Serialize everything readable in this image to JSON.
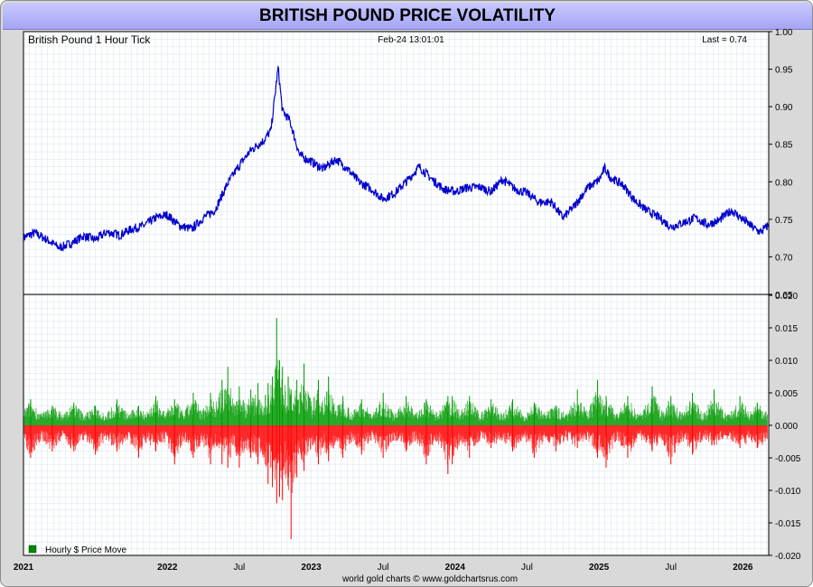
{
  "page": {
    "title": "BRITISH POUND PRICE VOLATILITY",
    "footer": "world gold charts © www.goldchartsrus.com"
  },
  "colors": {
    "price_line": "#0000cc",
    "positive_bar": "#009900",
    "negative_bar": "#ff0000",
    "title_bar": "#b4b4f8",
    "grid": "#dde8ee"
  },
  "chart_data": [
    {
      "type": "line",
      "chart_label": "British Pound 1 Hour Tick",
      "timestamp": "Feb-24  13:01:01",
      "last": "Last = 0.74",
      "ylim": [
        0.65,
        1.0
      ],
      "yticks": [
        "1.00",
        "0.95",
        "0.90",
        "0.85",
        "0.80",
        "0.75",
        "0.70",
        "0.65"
      ],
      "x_labels": [
        "2021",
        "2022",
        "Jul",
        "2023",
        "Jul",
        "2024",
        "Jul",
        "2025",
        "Jul",
        "2026"
      ],
      "x_label_dates": [
        2021.0,
        2022.0,
        2022.5,
        2023.0,
        2023.5,
        2024.0,
        2024.5,
        2025.0,
        2025.5,
        2026.0
      ],
      "xlim": [
        2021.0,
        2026.18
      ],
      "grid": true,
      "series": [
        {
          "points": [
            [
              2021.0,
              0.726
            ],
            [
              2021.08,
              0.732
            ],
            [
              2021.17,
              0.722
            ],
            [
              2021.25,
              0.712
            ],
            [
              2021.33,
              0.718
            ],
            [
              2021.42,
              0.728
            ],
            [
              2021.5,
              0.723
            ],
            [
              2021.58,
              0.733
            ],
            [
              2021.67,
              0.729
            ],
            [
              2021.75,
              0.737
            ],
            [
              2021.83,
              0.741
            ],
            [
              2021.92,
              0.752
            ],
            [
              2022.0,
              0.756
            ],
            [
              2022.08,
              0.742
            ],
            [
              2022.17,
              0.737
            ],
            [
              2022.25,
              0.752
            ],
            [
              2022.33,
              0.762
            ],
            [
              2022.42,
              0.798
            ],
            [
              2022.5,
              0.822
            ],
            [
              2022.58,
              0.842
            ],
            [
              2022.67,
              0.855
            ],
            [
              2022.72,
              0.868
            ],
            [
              2022.77,
              0.952
            ],
            [
              2022.8,
              0.894
            ],
            [
              2022.85,
              0.882
            ],
            [
              2022.92,
              0.835
            ],
            [
              2023.0,
              0.827
            ],
            [
              2023.08,
              0.817
            ],
            [
              2023.17,
              0.83
            ],
            [
              2023.25,
              0.818
            ],
            [
              2023.33,
              0.8
            ],
            [
              2023.42,
              0.79
            ],
            [
              2023.5,
              0.777
            ],
            [
              2023.58,
              0.785
            ],
            [
              2023.67,
              0.802
            ],
            [
              2023.75,
              0.82
            ],
            [
              2023.83,
              0.805
            ],
            [
              2023.92,
              0.79
            ],
            [
              2024.0,
              0.787
            ],
            [
              2024.08,
              0.792
            ],
            [
              2024.17,
              0.793
            ],
            [
              2024.25,
              0.787
            ],
            [
              2024.33,
              0.803
            ],
            [
              2024.42,
              0.79
            ],
            [
              2024.5,
              0.785
            ],
            [
              2024.58,
              0.773
            ],
            [
              2024.67,
              0.773
            ],
            [
              2024.75,
              0.752
            ],
            [
              2024.83,
              0.768
            ],
            [
              2024.92,
              0.792
            ],
            [
              2025.0,
              0.802
            ],
            [
              2025.04,
              0.818
            ],
            [
              2025.08,
              0.806
            ],
            [
              2025.17,
              0.795
            ],
            [
              2025.25,
              0.775
            ],
            [
              2025.33,
              0.762
            ],
            [
              2025.42,
              0.752
            ],
            [
              2025.5,
              0.74
            ],
            [
              2025.58,
              0.745
            ],
            [
              2025.67,
              0.752
            ],
            [
              2025.75,
              0.743
            ],
            [
              2025.83,
              0.748
            ],
            [
              2025.92,
              0.762
            ],
            [
              2026.0,
              0.75
            ],
            [
              2026.08,
              0.738
            ],
            [
              2026.12,
              0.733
            ],
            [
              2026.18,
              0.742
            ]
          ]
        }
      ]
    },
    {
      "type": "bar",
      "ylim": [
        -0.02,
        0.02
      ],
      "yticks": [
        "0.020",
        "0.015",
        "0.010",
        "0.005",
        "0.000",
        "-0.005",
        "-0.010",
        "-0.015",
        "-0.020"
      ],
      "legend": "Hourly $ Price Move",
      "legend_position": "bottom-left",
      "xlim": [
        2021.0,
        2026.18
      ],
      "grid": true,
      "series": [
        {
          "name": "Hourly $ Price Move",
          "baseline": [
            0.001,
            -0.0012
          ],
          "spikes": [
            [
              2021.05,
              0.004,
              -0.005
            ],
            [
              2021.2,
              0.003,
              -0.004
            ],
            [
              2021.35,
              0.0035,
              -0.004
            ],
            [
              2021.5,
              0.003,
              -0.0045
            ],
            [
              2021.65,
              0.004,
              -0.004
            ],
            [
              2021.8,
              0.003,
              -0.005
            ],
            [
              2021.92,
              0.0045,
              -0.004
            ],
            [
              2022.05,
              0.004,
              -0.006
            ],
            [
              2022.18,
              0.005,
              -0.005
            ],
            [
              2022.3,
              0.005,
              -0.006
            ],
            [
              2022.38,
              0.007,
              -0.006
            ],
            [
              2022.42,
              0.009,
              -0.0065
            ],
            [
              2022.5,
              0.006,
              -0.0065
            ],
            [
              2022.58,
              0.0055,
              -0.005
            ],
            [
              2022.63,
              0.0065,
              -0.006
            ],
            [
              2022.7,
              0.0065,
              -0.009
            ],
            [
              2022.73,
              0.0075,
              -0.0095
            ],
            [
              2022.76,
              0.0165,
              -0.012
            ],
            [
              2022.78,
              0.01,
              -0.011
            ],
            [
              2022.8,
              0.009,
              -0.0115
            ],
            [
              2022.84,
              0.0075,
              -0.008
            ],
            [
              2022.86,
              0.0055,
              -0.0175
            ],
            [
              2022.9,
              0.007,
              -0.008
            ],
            [
              2022.95,
              0.0095,
              -0.007
            ],
            [
              2023.05,
              0.007,
              -0.006
            ],
            [
              2023.12,
              0.0075,
              -0.0055
            ],
            [
              2023.22,
              0.0045,
              -0.005
            ],
            [
              2023.35,
              0.004,
              -0.0045
            ],
            [
              2023.5,
              0.005,
              -0.005
            ],
            [
              2023.66,
              0.0045,
              -0.004
            ],
            [
              2023.8,
              0.004,
              -0.006
            ],
            [
              2023.95,
              0.0045,
              -0.0075
            ],
            [
              2023.98,
              0.0045,
              -0.006
            ],
            [
              2024.1,
              0.0045,
              -0.005
            ],
            [
              2024.25,
              0.004,
              -0.0035
            ],
            [
              2024.4,
              0.004,
              -0.004
            ],
            [
              2024.55,
              0.0035,
              -0.005
            ],
            [
              2024.7,
              0.003,
              -0.004
            ],
            [
              2024.85,
              0.0055,
              -0.0035
            ],
            [
              2024.99,
              0.007,
              -0.005
            ],
            [
              2025.05,
              0.0045,
              -0.0065
            ],
            [
              2025.2,
              0.0045,
              -0.005
            ],
            [
              2025.37,
              0.006,
              -0.004
            ],
            [
              2025.5,
              0.0045,
              -0.006
            ],
            [
              2025.65,
              0.005,
              -0.0045
            ],
            [
              2025.8,
              0.0055,
              -0.003
            ],
            [
              2025.98,
              0.0045,
              -0.0035
            ],
            [
              2026.1,
              0.0035,
              -0.0035
            ]
          ]
        }
      ]
    }
  ]
}
